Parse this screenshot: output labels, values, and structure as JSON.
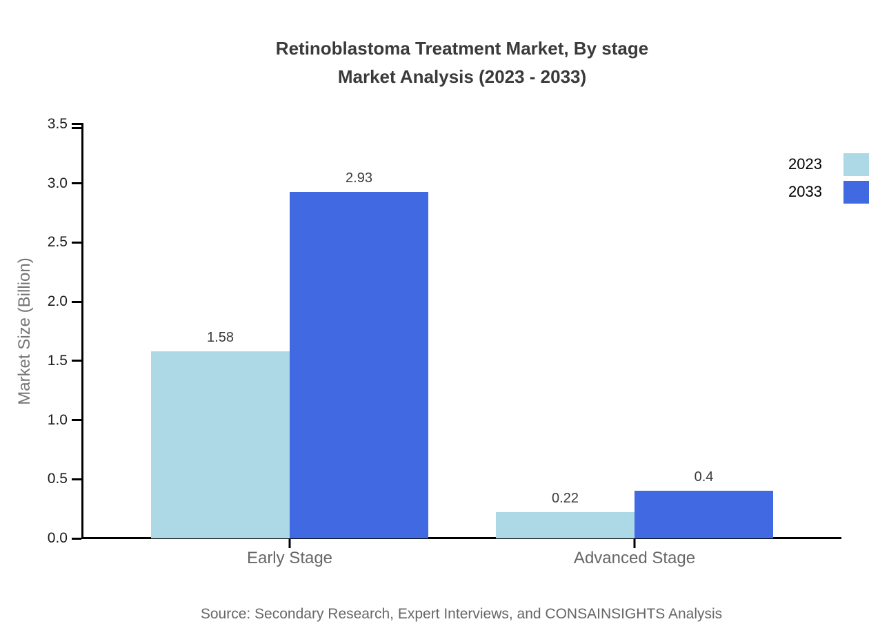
{
  "title": {
    "line1": "Retinoblastoma Treatment Market, By stage",
    "line2": "Market Analysis (2023 - 2033)"
  },
  "source": "Source: Secondary Research, Expert Interviews, and CONSAINSIGHTS Analysis",
  "chart_data": {
    "type": "bar",
    "title": "Retinoblastoma Treatment Market, By stage Market Analysis (2023 - 2033)",
    "categories": [
      "Early Stage",
      "Advanced Stage"
    ],
    "series": [
      {
        "name": "2023",
        "color": "#ADD8E6",
        "values": [
          1.58,
          0.22
        ],
        "value_labels": [
          "1.58",
          "0.22"
        ]
      },
      {
        "name": "2033",
        "color": "#4169E1",
        "values": [
          2.93,
          0.4
        ],
        "value_labels": [
          "2.93",
          "0.4"
        ]
      }
    ],
    "xlabel": "",
    "ylabel": "Market Size (Billion)",
    "ylim": [
      0,
      3.5
    ],
    "ytick_step": 0.5,
    "ytick_labels": [
      "0.0",
      "0.5",
      "1.0",
      "1.5",
      "2.0",
      "2.5",
      "3.0",
      "3.5"
    ],
    "grid": false,
    "legend_position": "right-outside-top"
  },
  "colors": {
    "axis": "#000000",
    "title_text": "#3a3a3a",
    "value_label_text": "#3a3a3a",
    "category_label_text": "#666666",
    "ylabel_text": "#757575",
    "source_text": "#666666",
    "background": "#ffffff"
  }
}
